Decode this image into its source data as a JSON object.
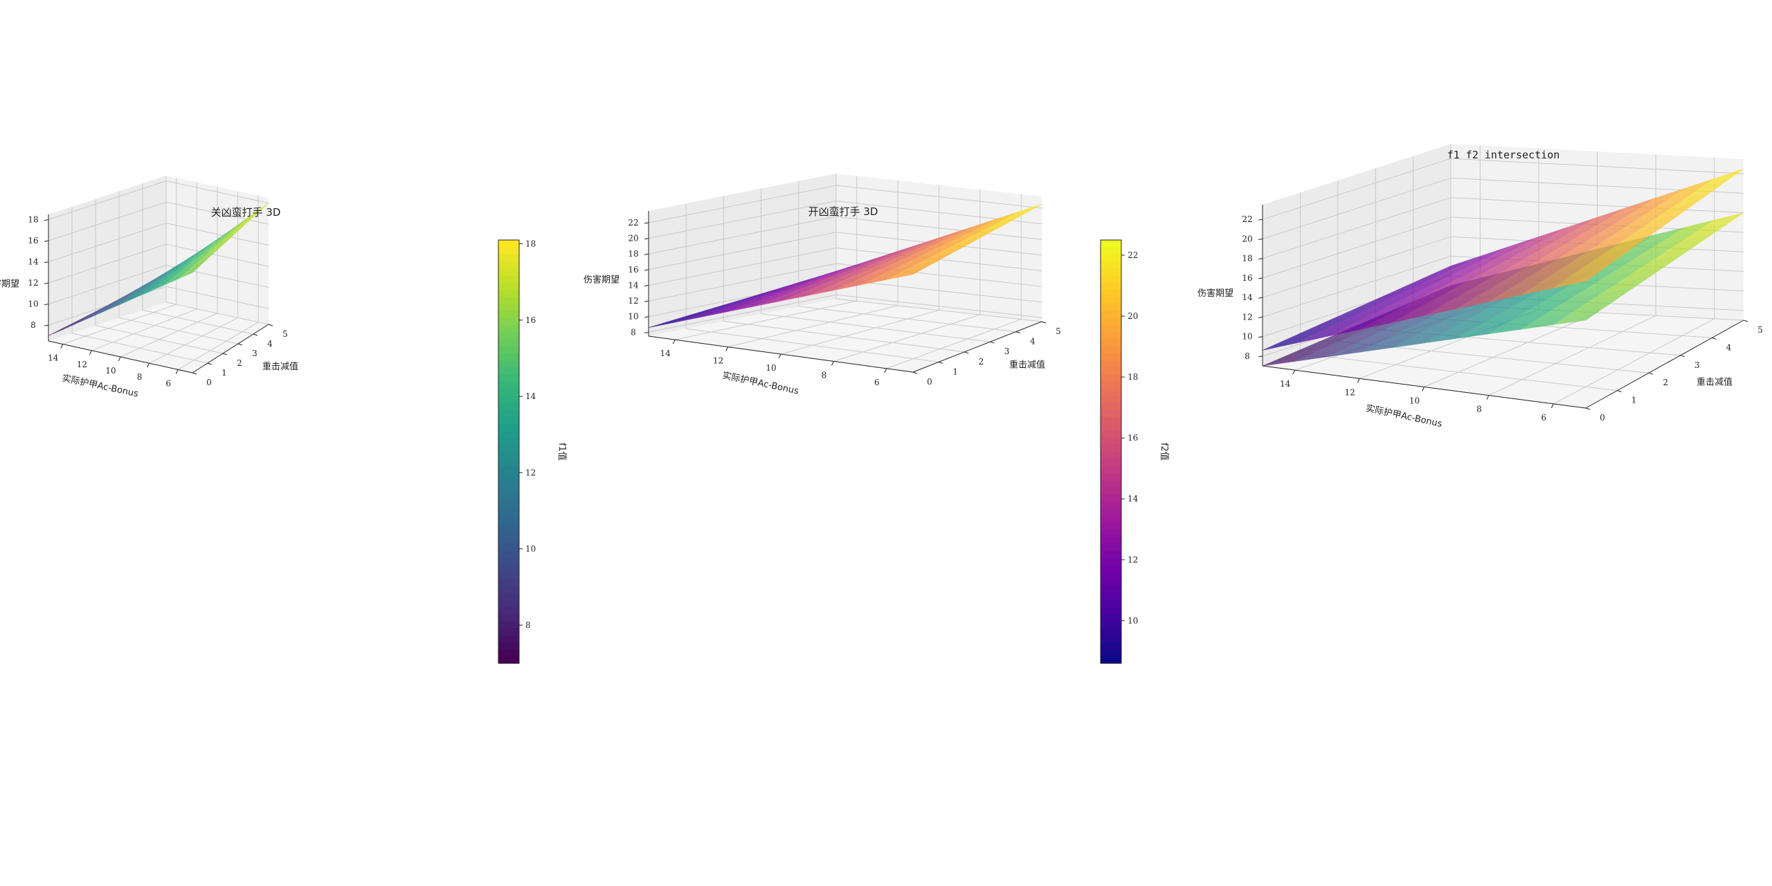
{
  "chart_data": [
    {
      "type": "surface3d",
      "title": "关凶蛮打手 3D",
      "xlabel": "实际护甲Ac-Bonus",
      "ylabel": "重击减值",
      "zlabel": "伤害期望",
      "x_ticks": [
        "14",
        "12",
        "10",
        "8",
        "6"
      ],
      "y_ticks": [
        "0",
        "1",
        "2",
        "3",
        "4",
        "5"
      ],
      "z_ticks": [
        "8",
        "10",
        "12",
        "14",
        "16",
        "18"
      ],
      "xlim": [
        5,
        15
      ],
      "ylim": [
        0,
        5
      ],
      "zlim": [
        6.5,
        18.5
      ],
      "colormap": "viridis",
      "surface": {
        "ac_range": [
          5,
          15
        ],
        "crit_range": [
          0,
          5
        ],
        "z_corners": {
          "ac15_c0": 7.0,
          "ac15_c5": 9.0,
          "ac5_c0": 16.0,
          "ac5_c5": 18.0
        }
      },
      "colorbar": {
        "label": "f1值",
        "ticks": [
          "8",
          "10",
          "12",
          "14",
          "16",
          "18"
        ],
        "range": [
          7.0,
          18.1
        ]
      }
    },
    {
      "type": "surface3d",
      "title": "开凶蛮打手 3D",
      "xlabel": "实际护甲Ac-Bonus",
      "ylabel": "重击减值",
      "zlabel": "伤害期望",
      "x_ticks": [
        "14",
        "12",
        "10",
        "8",
        "6"
      ],
      "y_ticks": [
        "0",
        "1",
        "2",
        "3",
        "4",
        "5"
      ],
      "z_ticks": [
        "8",
        "10",
        "12",
        "14",
        "16",
        "18",
        "20",
        "22"
      ],
      "xlim": [
        5,
        15
      ],
      "ylim": [
        0,
        5
      ],
      "zlim": [
        7.5,
        23.5
      ],
      "colormap": "plasma",
      "surface": {
        "ac_range": [
          5,
          15
        ],
        "crit_range": [
          0,
          5
        ],
        "z_corners": {
          "ac15_c0": 8.6,
          "ac15_c5": 11.0,
          "ac5_c0": 20.0,
          "ac5_c5": 22.5
        }
      },
      "colorbar": {
        "label": "f2值",
        "ticks": [
          "10",
          "12",
          "14",
          "16",
          "18",
          "20",
          "22"
        ],
        "range": [
          8.6,
          22.5
        ]
      }
    },
    {
      "type": "surface3d",
      "title": "f1 f2 intersection",
      "xlabel": "实际护甲Ac-Bonus",
      "ylabel": "重击减值",
      "zlabel": "伤害期望",
      "x_ticks": [
        "14",
        "12",
        "10",
        "8",
        "6"
      ],
      "y_ticks": [
        "0",
        "1",
        "2",
        "3",
        "4",
        "5"
      ],
      "z_ticks": [
        "8",
        "10",
        "12",
        "14",
        "16",
        "18",
        "20",
        "22"
      ],
      "xlim": [
        5,
        15
      ],
      "ylim": [
        0,
        5
      ],
      "zlim": [
        7,
        23.5
      ],
      "surfaces": [
        {
          "colormap": "viridis",
          "z_corners": {
            "ac15_c0": 7.0,
            "ac15_c5": 9.0,
            "ac5_c0": 16.0,
            "ac5_c5": 18.0
          }
        },
        {
          "colormap": "plasma",
          "z_corners": {
            "ac15_c0": 8.6,
            "ac15_c5": 11.0,
            "ac5_c0": 20.0,
            "ac5_c5": 22.5
          }
        }
      ]
    }
  ]
}
